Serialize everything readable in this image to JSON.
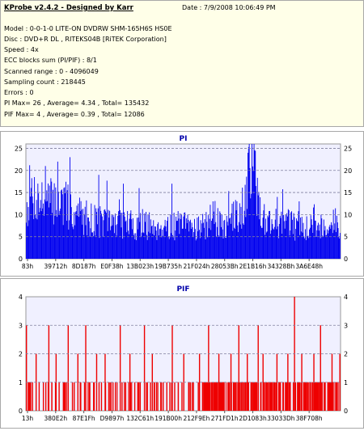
{
  "app": {
    "title": "KProbe v2.4.2 - Designed by Karr",
    "date": "Date : 7/9/2008 10:06:49 PM"
  },
  "info_lines": [
    "Model : 0-0-1-0 LITE-ON DVDRW SHM-165H6S HS0E",
    "Disc : DVD+R DL , RITEKS04B [RiTEK Corporation]",
    "Speed : 4x",
    "ECC blocks sum (PI/PIF) : 8/1",
    "Scanned range : 0 - 4096049",
    "Sampling count : 218445",
    "Errors : 0",
    "PI Max= 26 , Average= 4.34 , Total= 135432",
    "PIF Max= 4 , Average= 0.39 , Total= 12086"
  ],
  "colors": {
    "plot_bg": "#f0f0ff",
    "pi_bar": "#0000ee",
    "pif_bar": "#ee0000",
    "title_blue": "#0000aa",
    "grid": "#7f7f9f"
  },
  "chart_data": [
    {
      "type": "bar",
      "title": "PI",
      "ylim": [
        0,
        26
      ],
      "y_ticks": [
        "0",
        "5",
        "10",
        "15",
        "20",
        "25"
      ],
      "x_ticks": [
        "83h",
        "39712h",
        "8D187h",
        "E0F38h",
        "13B023h",
        "19B735h",
        "21F024h",
        "28053Bh",
        "2E1B16h",
        "34328Bh",
        "3A6E48h"
      ],
      "grid": true,
      "profile": [
        [
          0,
          13
        ],
        [
          0.01,
          18
        ],
        [
          0.03,
          17
        ],
        [
          0.06,
          15
        ],
        [
          0.09,
          16
        ],
        [
          0.12,
          15
        ],
        [
          0.15,
          13
        ],
        [
          0.2,
          11
        ],
        [
          0.25,
          10
        ],
        [
          0.3,
          10
        ],
        [
          0.35,
          9
        ],
        [
          0.4,
          9
        ],
        [
          0.45,
          9
        ],
        [
          0.5,
          9
        ],
        [
          0.55,
          9
        ],
        [
          0.6,
          9
        ],
        [
          0.64,
          9
        ],
        [
          0.67,
          12
        ],
        [
          0.69,
          15
        ],
        [
          0.71,
          23
        ],
        [
          0.72,
          26
        ],
        [
          0.735,
          18
        ],
        [
          0.75,
          12
        ],
        [
          0.78,
          10
        ],
        [
          0.82,
          10
        ],
        [
          0.86,
          9
        ],
        [
          0.9,
          9
        ],
        [
          0.95,
          9
        ],
        [
          1.0,
          10
        ]
      ],
      "spikes": [
        [
          0.06,
          21
        ],
        [
          0.1,
          22
        ],
        [
          0.14,
          23
        ],
        [
          0.23,
          19
        ],
        [
          0.31,
          17
        ],
        [
          0.36,
          16
        ],
        [
          0.465,
          17
        ],
        [
          0.595,
          13
        ],
        [
          0.705,
          24
        ],
        [
          0.725,
          26
        ],
        [
          0.8,
          14
        ],
        [
          0.87,
          13
        ]
      ]
    },
    {
      "type": "bar",
      "title": "PIF",
      "ylim": [
        0,
        4
      ],
      "y_ticks": [
        "0",
        "1",
        "2",
        "3",
        "4"
      ],
      "x_ticks": [
        "13h",
        "380E2h",
        "87E1Fh",
        "D9897h",
        "132C61h",
        "191B00h",
        "212F9Eh",
        "271FD1h",
        "2D1083h",
        "33033Dh",
        "38F708h"
      ],
      "grid": true,
      "values": [
        3,
        0,
        1,
        1,
        0,
        2,
        1,
        0,
        1,
        0,
        1,
        3,
        0,
        1,
        0,
        2,
        1,
        0,
        0,
        1,
        1,
        3,
        0,
        1,
        1,
        0,
        2,
        1,
        0,
        1,
        3,
        0,
        1,
        0,
        1,
        2,
        0,
        1,
        1,
        0,
        2,
        0,
        1,
        0,
        1,
        1,
        0,
        3,
        1,
        0,
        1,
        0,
        2,
        1,
        0,
        1,
        1,
        0,
        1,
        0,
        3,
        1,
        0,
        1,
        2,
        0,
        1,
        0,
        1,
        1,
        0,
        1,
        0,
        1,
        3,
        1,
        0,
        1,
        0,
        1,
        2,
        0,
        1,
        1,
        0,
        1,
        0,
        1,
        2,
        0,
        1,
        0,
        3,
        1,
        1,
        0,
        1,
        2,
        1,
        1,
        1,
        0,
        1,
        1,
        2,
        1,
        1,
        0,
        3,
        1,
        1,
        1,
        2,
        1,
        0,
        1,
        1,
        1,
        3,
        1,
        2,
        1,
        1,
        0,
        1,
        1,
        1,
        2,
        1,
        1,
        1,
        0,
        1,
        2,
        1,
        1,
        4,
        1,
        1,
        1,
        2,
        1,
        1,
        1,
        0,
        1,
        2,
        1,
        1,
        3,
        1,
        1,
        0,
        1,
        1,
        2,
        1,
        1,
        1,
        2
      ]
    }
  ]
}
